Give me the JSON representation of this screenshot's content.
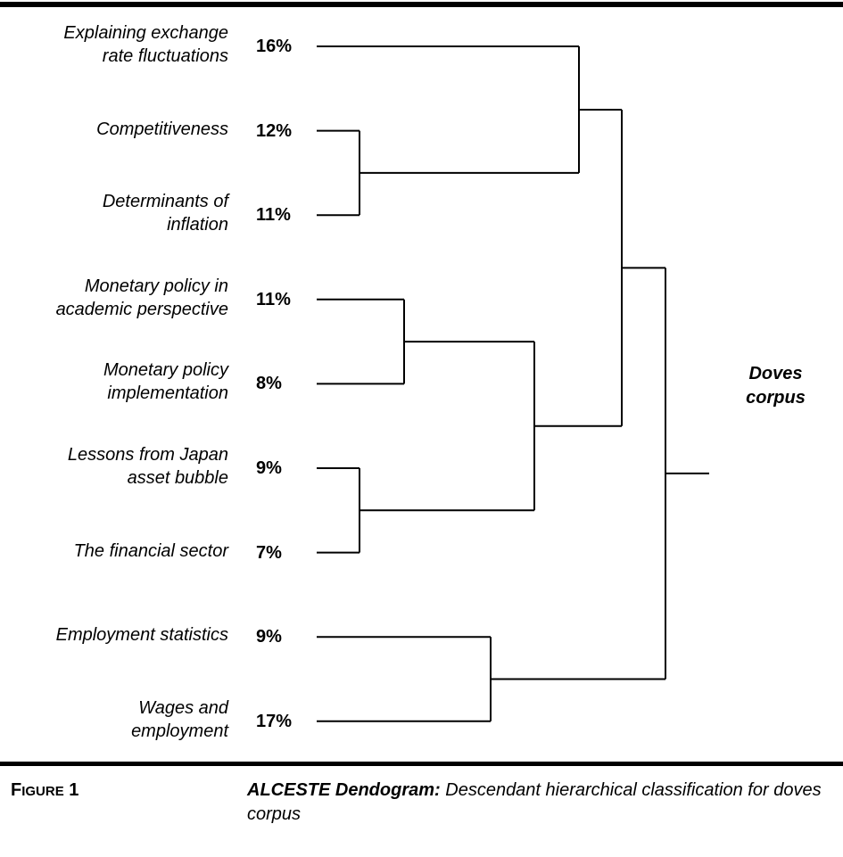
{
  "figure": {
    "label_initial": "F",
    "label_rest": "IGURE",
    "label_number": "1",
    "caption_bold": "ALCESTE Dendogram:",
    "caption_rest": "Descendant hierarchical classification for doves corpus"
  },
  "root_label": [
    "Doves",
    "corpus"
  ],
  "chart_data": {
    "type": "dendrogram",
    "leaves": [
      {
        "label": [
          "Explaining exchange",
          "rate fluctuations"
        ],
        "percent": "16%"
      },
      {
        "label": [
          "Competitiveness"
        ],
        "percent": "12%"
      },
      {
        "label": [
          "Determinants of",
          "inflation"
        ],
        "percent": "11%"
      },
      {
        "label": [
          "Monetary policy in",
          "academic perspective"
        ],
        "percent": "11%"
      },
      {
        "label": [
          "Monetary policy",
          "implementation"
        ],
        "percent": "8%"
      },
      {
        "label": [
          "Lessons from Japan",
          "asset bubble"
        ],
        "percent": "9%"
      },
      {
        "label": [
          "The financial sector"
        ],
        "percent": "7%"
      },
      {
        "label": [
          "Employment statistics"
        ],
        "percent": "9%"
      },
      {
        "label": [
          "Wages and",
          "employment"
        ],
        "percent": "17%"
      }
    ],
    "merges": [
      {
        "id": "A",
        "children": [
          1,
          2
        ],
        "level": 1
      },
      {
        "id": "B",
        "children": [
          0,
          "A"
        ],
        "level": 3
      },
      {
        "id": "C",
        "children": [
          3,
          4
        ],
        "level": 2
      },
      {
        "id": "D",
        "children": [
          5,
          6
        ],
        "level": 1
      },
      {
        "id": "E",
        "children": [
          "C",
          "D"
        ],
        "level": 4
      },
      {
        "id": "F",
        "children": [
          "B",
          "E"
        ],
        "level": 5
      },
      {
        "id": "G",
        "children": [
          7,
          8
        ],
        "level": 4
      },
      {
        "id": "H",
        "children": [
          "F",
          "G"
        ],
        "level": 6
      }
    ]
  }
}
